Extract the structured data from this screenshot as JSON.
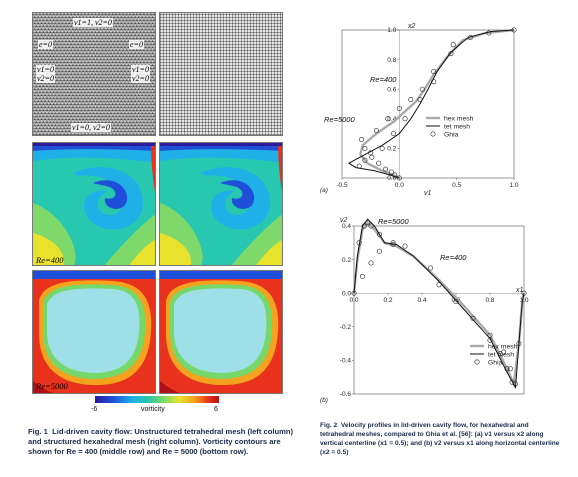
{
  "fig1": {
    "mesh_labels": {
      "lid": "v1=1, v2=0",
      "e_left": "e=0",
      "e_right": "e=0",
      "v1_left": "v1=0",
      "v2_left": "v2=0",
      "v1_right": "v1=0",
      "v2_right": "v2=0",
      "bottom": "v1=0, v2=0"
    },
    "re_labels": [
      "Re=400",
      "Re=5000"
    ],
    "colorbar": {
      "min": "-6",
      "max": "6",
      "label": "vorticity"
    },
    "caption_title": "Fig. 1",
    "caption_body": "Lid-driven cavity flow: Unstructured tetrahedral mesh (left column) and structured hexahedral mesh (right column). Vorticity contours are shown for Re = 400 (middle row) and Re = 5000 (bottom row)."
  },
  "fig2": {
    "caption_title": "Fig. 2",
    "caption_body": "Velocity profiles in lid-driven cavity flow, for hexahedral and tetrahedral meshes, compared to Ghia et al. [56]: (a) v1 versus x2 along vertical centerline (x1 = 0.5); and (b) v2 versus x1 along horizontal centerline (x2 = 0.5)",
    "legend": [
      "hex mesh",
      "tet mesh",
      "Ghia"
    ]
  },
  "chart_data": [
    {
      "type": "line",
      "panel_label": "(a)",
      "xlabel": "v1",
      "ylabel": "x2",
      "xlim": [
        -0.5,
        1.0
      ],
      "ylim": [
        0,
        1.0
      ],
      "xticks": [
        "-0.5",
        "0.0",
        "0.5",
        "1.0"
      ],
      "yticks": [
        "0.0",
        "0.2",
        "0.4",
        "0.6",
        "0.8",
        "1.0"
      ],
      "annotations": [
        "Re=400",
        "Re=5000"
      ],
      "series": [
        {
          "name": "hex mesh",
          "x": [
            0,
            -0.05,
            -0.15,
            -0.28,
            -0.34,
            -0.32,
            -0.2,
            -0.05,
            0.05,
            0.15,
            0.22,
            0.3,
            0.42,
            0.55,
            0.75,
            1.0
          ],
          "y": [
            0,
            0.02,
            0.05,
            0.1,
            0.16,
            0.22,
            0.3,
            0.38,
            0.45,
            0.52,
            0.6,
            0.7,
            0.82,
            0.93,
            0.98,
            1.0
          ]
        },
        {
          "name": "tet mesh",
          "x": [
            0,
            -0.08,
            -0.22,
            -0.38,
            -0.44,
            -0.32,
            -0.15,
            0.0,
            0.1,
            0.18,
            0.25,
            0.33,
            0.45,
            0.6,
            0.8,
            1.0
          ],
          "y": [
            0,
            0.02,
            0.05,
            0.07,
            0.1,
            0.15,
            0.22,
            0.3,
            0.4,
            0.5,
            0.6,
            0.72,
            0.85,
            0.95,
            0.99,
            1.0
          ]
        },
        {
          "name": "Ghia",
          "x": [
            0,
            -0.04,
            -0.07,
            -0.12,
            -0.18,
            -0.24,
            -0.3,
            -0.33,
            -0.2,
            -0.1,
            0.0,
            0.1,
            0.2,
            0.3,
            0.45,
            0.62,
            0.78,
            1.0
          ],
          "y": [
            0,
            0.02,
            0.04,
            0.06,
            0.1,
            0.14,
            0.2,
            0.26,
            0.32,
            0.4,
            0.47,
            0.53,
            0.6,
            0.72,
            0.84,
            0.95,
            0.98,
            1.0
          ]
        },
        {
          "name": "Ghia",
          "x": [
            -0.35,
            -0.3,
            -0.25,
            -0.15,
            -0.05,
            0.05,
            0.18,
            0.3,
            0.47
          ],
          "y": [
            0.08,
            0.12,
            0.17,
            0.2,
            0.3,
            0.4,
            0.53,
            0.65,
            0.9
          ]
        }
      ]
    },
    {
      "type": "line",
      "panel_label": "(b)",
      "xlabel": "x1",
      "ylabel": "v2",
      "xlim": [
        0,
        1.0
      ],
      "ylim": [
        -0.6,
        0.4
      ],
      "xticks": [
        "0.0",
        "0.2",
        "0.4",
        "0.6",
        "0.8",
        "1.0"
      ],
      "yticks": [
        "-0.6",
        "-0.4",
        "-0.2",
        "0.0",
        "0.2",
        "0.4"
      ],
      "annotations": [
        "Re=5000",
        "Re=400"
      ],
      "series": [
        {
          "name": "hex mesh",
          "x": [
            0,
            0.02,
            0.05,
            0.08,
            0.12,
            0.18,
            0.25,
            0.35,
            0.5,
            0.65,
            0.8,
            0.9,
            0.94,
            0.97,
            0.99,
            1.0
          ],
          "y": [
            0,
            0.2,
            0.38,
            0.42,
            0.38,
            0.3,
            0.28,
            0.22,
            0.08,
            -0.08,
            -0.25,
            -0.45,
            -0.54,
            -0.3,
            -0.05,
            0
          ]
        },
        {
          "name": "tet mesh",
          "x": [
            0,
            0.02,
            0.05,
            0.08,
            0.12,
            0.18,
            0.25,
            0.35,
            0.5,
            0.65,
            0.8,
            0.9,
            0.95,
            0.97,
            0.99,
            1.0
          ],
          "y": [
            0,
            0.22,
            0.4,
            0.44,
            0.4,
            0.3,
            0.29,
            0.22,
            0.07,
            -0.1,
            -0.27,
            -0.47,
            -0.56,
            -0.3,
            -0.05,
            0
          ]
        },
        {
          "name": "Ghia",
          "x": [
            0.0,
            0.03,
            0.06,
            0.08,
            0.1,
            0.15,
            0.23,
            0.5,
            0.8,
            0.86,
            0.9,
            0.93,
            0.95,
            0.97,
            1.0
          ],
          "y": [
            0.0,
            0.3,
            0.4,
            0.42,
            0.4,
            0.35,
            0.29,
            0.05,
            -0.28,
            -0.36,
            -0.45,
            -0.53,
            -0.54,
            -0.3,
            0.0
          ]
        },
        {
          "name": "Ghia",
          "x": [
            0.05,
            0.1,
            0.15,
            0.23,
            0.3,
            0.45,
            0.6,
            0.7,
            0.8,
            0.88,
            0.92
          ],
          "y": [
            0.1,
            0.18,
            0.25,
            0.3,
            0.28,
            0.15,
            -0.05,
            -0.15,
            -0.25,
            -0.35,
            -0.45
          ]
        }
      ]
    }
  ]
}
